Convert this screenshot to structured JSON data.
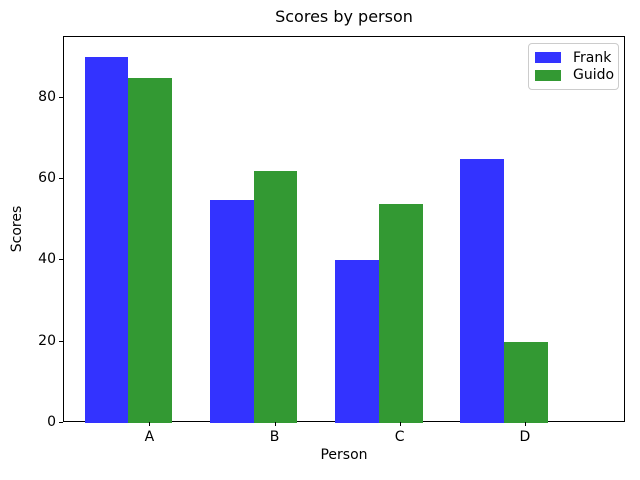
{
  "chart_data": {
    "type": "bar",
    "title": "Scores by person",
    "xlabel": "Person",
    "ylabel": "Scores",
    "categories": [
      "A",
      "B",
      "C",
      "D"
    ],
    "series": [
      {
        "name": "Frank",
        "color": "#3333ff",
        "offset": -0.35,
        "values": [
          90,
          55,
          40,
          65
        ]
      },
      {
        "name": "Guido",
        "color": "#339933",
        "offset": 0.0,
        "values": [
          85,
          62,
          54,
          20
        ]
      }
    ],
    "bar_width": 0.35,
    "xlim": [
      -0.69,
      3.8
    ],
    "ylim": [
      0,
      95
    ],
    "yticks": [
      0,
      20,
      40,
      60,
      80
    ],
    "grid": false,
    "legend_position": "upper right",
    "axis_color": "#000000",
    "background_color": "#ffffff"
  }
}
